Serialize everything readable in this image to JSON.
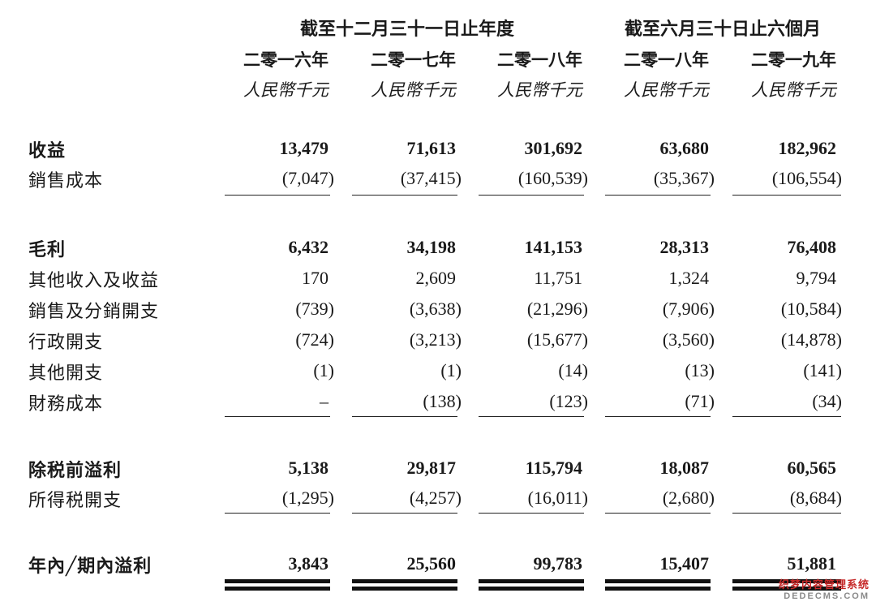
{
  "header": {
    "group_annual": "截至十二月三十一日止年度",
    "group_interim": "截至六月三十日止六個月",
    "columns": [
      {
        "year": "二零一六年",
        "unit": "人民幣千元"
      },
      {
        "year": "二零一七年",
        "unit": "人民幣千元"
      },
      {
        "year": "二零一八年",
        "unit": "人民幣千元"
      },
      {
        "year": "二零一八年",
        "unit": "人民幣千元"
      },
      {
        "year": "二零一九年",
        "unit": "人民幣千元"
      }
    ]
  },
  "rows": [
    {
      "label": "收益",
      "bold": true,
      "values": [
        "13,479",
        "71,613",
        "301,692",
        "63,680",
        "182,962"
      ]
    },
    {
      "label": "銷售成本",
      "bold": false,
      "values": [
        "(7,047)",
        "(37,415)",
        "(160,539)",
        "(35,367)",
        "(106,554)"
      ]
    },
    {
      "label": "毛利",
      "bold": true,
      "values": [
        "6,432",
        "34,198",
        "141,153",
        "28,313",
        "76,408"
      ]
    },
    {
      "label": "其他收入及收益",
      "bold": false,
      "values": [
        "170",
        "2,609",
        "11,751",
        "1,324",
        "9,794"
      ]
    },
    {
      "label": "銷售及分銷開支",
      "bold": false,
      "values": [
        "(739)",
        "(3,638)",
        "(21,296)",
        "(7,906)",
        "(10,584)"
      ]
    },
    {
      "label": "行政開支",
      "bold": false,
      "values": [
        "(724)",
        "(3,213)",
        "(15,677)",
        "(3,560)",
        "(14,878)"
      ]
    },
    {
      "label": "其他開支",
      "bold": false,
      "values": [
        "(1)",
        "(1)",
        "(14)",
        "(13)",
        "(141)"
      ]
    },
    {
      "label": "財務成本",
      "bold": false,
      "values": [
        "–",
        "(138)",
        "(123)",
        "(71)",
        "(34)"
      ]
    },
    {
      "label": "除税前溢利",
      "bold": true,
      "values": [
        "5,138",
        "29,817",
        "115,794",
        "18,087",
        "60,565"
      ]
    },
    {
      "label": "所得税開支",
      "bold": false,
      "values": [
        "(1,295)",
        "(4,257)",
        "(16,011)",
        "(2,680)",
        "(8,684)"
      ]
    },
    {
      "label": "年內╱期內溢利",
      "bold": true,
      "values": [
        "3,843",
        "25,560",
        "99,783",
        "15,407",
        "51,881"
      ]
    }
  ],
  "watermark": {
    "line1": "织梦内容管理系统",
    "line2": "DEDECMS.COM"
  }
}
